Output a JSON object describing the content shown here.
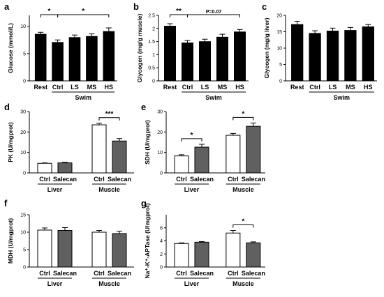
{
  "chart_data": [
    {
      "panel": "a",
      "type": "bar",
      "ylabel": "Glucose (mmol/L)",
      "ylim": [
        0,
        12
      ],
      "yticks": [
        0,
        5,
        10
      ],
      "categories": [
        "Rest",
        "Ctrl",
        "LS",
        "MS",
        "HS"
      ],
      "values": [
        8.6,
        7.1,
        8.0,
        8.2,
        9.1
      ],
      "errors": [
        0.3,
        0.4,
        0.4,
        0.4,
        0.6
      ],
      "fill": "#000000",
      "group_label": "Swim",
      "group_span": [
        1,
        4
      ],
      "annotations": [
        {
          "from": 0,
          "to": 1,
          "text": "*"
        },
        {
          "from": 1,
          "to": 4,
          "text": "*"
        }
      ]
    },
    {
      "panel": "b",
      "type": "bar",
      "ylabel": "Glycogen (mg/g muscle)",
      "ylim": [
        0,
        2.5
      ],
      "yticks": [
        0.0,
        0.5,
        1.0,
        1.5,
        2.0,
        2.5
      ],
      "categories": [
        "Rest",
        "Ctrl",
        "LS",
        "MS",
        "HS"
      ],
      "values": [
        2.1,
        1.46,
        1.51,
        1.68,
        1.88
      ],
      "errors": [
        0.08,
        0.08,
        0.08,
        0.1,
        0.08
      ],
      "fill": "#000000",
      "group_label": "Swim",
      "group_span": [
        1,
        4
      ],
      "annotations": [
        {
          "from": 0,
          "to": 1,
          "text": "**"
        },
        {
          "from": 1,
          "to": 4,
          "text": "P=0.07"
        }
      ]
    },
    {
      "panel": "c",
      "type": "bar",
      "ylabel": "Glycogen (mg/g liver)",
      "ylim": [
        0,
        20
      ],
      "yticks": [
        0,
        5,
        10,
        15,
        20
      ],
      "categories": [
        "Rest",
        "Ctrl",
        "LS",
        "MS",
        "HS"
      ],
      "values": [
        17.3,
        14.6,
        15.3,
        15.5,
        16.6
      ],
      "errors": [
        0.9,
        0.7,
        0.8,
        0.8,
        0.6
      ],
      "fill": "#000000",
      "group_label": "Swim",
      "group_span": [
        1,
        4
      ],
      "annotations": []
    },
    {
      "panel": "d",
      "type": "bar",
      "ylabel": "PK (U/mgprot)",
      "ylim": [
        0,
        30
      ],
      "yticks": [
        0,
        10,
        20,
        30
      ],
      "groups": [
        "Liver",
        "Muscle"
      ],
      "categories": [
        "Ctrl",
        "Salecan"
      ],
      "series": [
        {
          "name": "Ctrl",
          "values": [
            4.7,
            23.5
          ],
          "errors": [
            0.2,
            0.8
          ],
          "fill": "#ffffff"
        },
        {
          "name": "Salecan",
          "values": [
            4.9,
            15.6
          ],
          "errors": [
            0.3,
            1.2
          ],
          "fill": "#606060"
        }
      ],
      "annotations": [
        {
          "group": 1,
          "text": "***"
        }
      ]
    },
    {
      "panel": "e",
      "type": "bar",
      "ylabel": "SDH (U/mgprot)",
      "ylim": [
        0,
        30
      ],
      "yticks": [
        0,
        10,
        20,
        30
      ],
      "groups": [
        "Liver",
        "Muscle"
      ],
      "categories": [
        "Ctrl",
        "Salecan"
      ],
      "series": [
        {
          "name": "Ctrl",
          "values": [
            8.3,
            18.4
          ],
          "errors": [
            0.6,
            0.9
          ],
          "fill": "#ffffff"
        },
        {
          "name": "Salecan",
          "values": [
            12.6,
            22.8
          ],
          "errors": [
            1.4,
            1.6
          ],
          "fill": "#606060"
        }
      ],
      "annotations": [
        {
          "group": 0,
          "text": "*"
        },
        {
          "group": 1,
          "text": "*"
        }
      ]
    },
    {
      "panel": "f",
      "type": "bar",
      "ylabel": "MDH (U/mgprot)",
      "ylim": [
        0,
        15
      ],
      "yticks": [
        0,
        5,
        10,
        15
      ],
      "groups": [
        "Liver",
        "Muscle"
      ],
      "categories": [
        "Ctrl",
        "Salecan"
      ],
      "series": [
        {
          "name": "Ctrl",
          "values": [
            10.6,
            10.0
          ],
          "errors": [
            0.6,
            0.5
          ],
          "fill": "#ffffff"
        },
        {
          "name": "Salecan",
          "values": [
            10.5,
            9.6
          ],
          "errors": [
            0.8,
            0.7
          ],
          "fill": "#606060"
        }
      ],
      "annotations": []
    },
    {
      "panel": "g",
      "type": "bar",
      "ylabel": "Na⁺-K⁺-APTase (U/mgprot)",
      "ylim": [
        0,
        8
      ],
      "yticks": [
        0,
        2,
        4,
        6
      ],
      "groups": [
        "Liver",
        "Muscle"
      ],
      "categories": [
        "Ctrl",
        "Salecan"
      ],
      "series": [
        {
          "name": "Ctrl",
          "values": [
            3.6,
            5.2
          ],
          "errors": [
            0.1,
            0.4
          ],
          "fill": "#ffffff"
        },
        {
          "name": "Salecan",
          "values": [
            3.8,
            3.7
          ],
          "errors": [
            0.1,
            0.15
          ],
          "fill": "#606060"
        }
      ],
      "annotations": [
        {
          "group": 1,
          "text": "*"
        }
      ]
    }
  ]
}
